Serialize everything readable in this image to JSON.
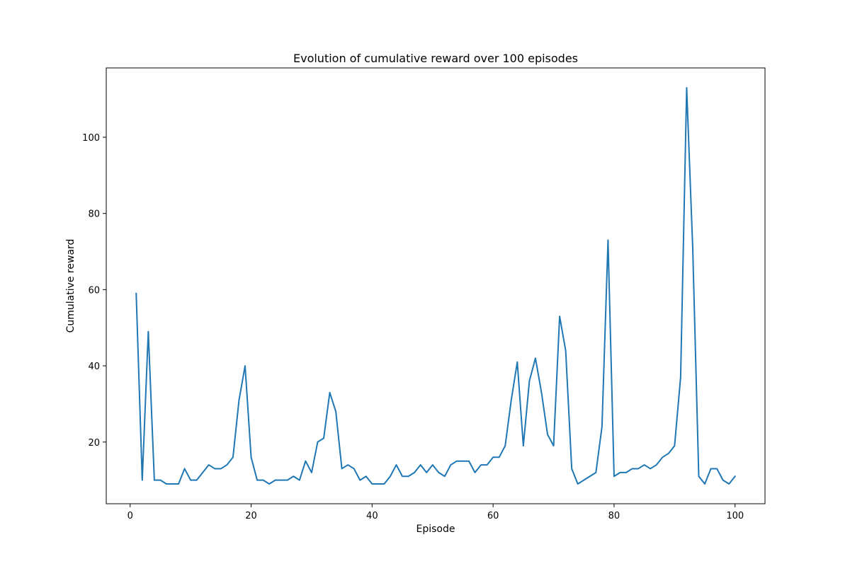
{
  "chart_data": {
    "type": "line",
    "title": "Evolution of cumulative reward over 100 episodes",
    "xlabel": "Episode",
    "ylabel": "Cumulative reward",
    "xlim": [
      -3.95,
      104.95
    ],
    "ylim": [
      3.8,
      118.2
    ],
    "xticks": [
      0,
      20,
      40,
      60,
      80,
      100
    ],
    "yticks": [
      20,
      40,
      60,
      80,
      100
    ],
    "grid": false,
    "legend": "none",
    "line_color": "#1f77b4",
    "series": [
      {
        "x": [
          1,
          2,
          3,
          4,
          5,
          6,
          7,
          8,
          9,
          10,
          11,
          12,
          13,
          14,
          15,
          16,
          17,
          18,
          19,
          20,
          21,
          22,
          23,
          24,
          25,
          26,
          27,
          28,
          29,
          30,
          31,
          32,
          33,
          34,
          35,
          36,
          37,
          38,
          39,
          40,
          41,
          42,
          43,
          44,
          45,
          46,
          47,
          48,
          49,
          50,
          51,
          52,
          53,
          54,
          55,
          56,
          57,
          58,
          59,
          60,
          61,
          62,
          63,
          64,
          65,
          66,
          67,
          68,
          69,
          70,
          71,
          72,
          73,
          74,
          75,
          76,
          77,
          78,
          79,
          80,
          81,
          82,
          83,
          84,
          85,
          86,
          87,
          88,
          89,
          90,
          91,
          92,
          93,
          94,
          95,
          96,
          97,
          98,
          99,
          100
        ],
        "values": [
          59,
          10,
          49,
          10,
          10,
          9,
          9,
          9,
          13,
          10,
          10,
          12,
          14,
          13,
          13,
          14,
          16,
          31,
          40,
          16,
          10,
          10,
          9,
          10,
          10,
          10,
          11,
          10,
          15,
          12,
          20,
          21,
          33,
          28,
          13,
          14,
          13,
          10,
          11,
          9,
          9,
          9,
          11,
          14,
          11,
          11,
          12,
          14,
          12,
          14,
          12,
          11,
          14,
          15,
          15,
          15,
          12,
          14,
          14,
          16,
          16,
          19,
          31,
          41,
          19,
          36,
          42,
          33,
          22,
          19,
          53,
          44,
          13,
          9,
          10,
          11,
          12,
          24,
          73,
          11,
          12,
          12,
          13,
          13,
          14,
          13,
          14,
          16,
          17,
          19,
          37,
          113,
          71,
          11,
          9,
          13,
          13,
          10,
          9,
          11
        ]
      }
    ]
  }
}
